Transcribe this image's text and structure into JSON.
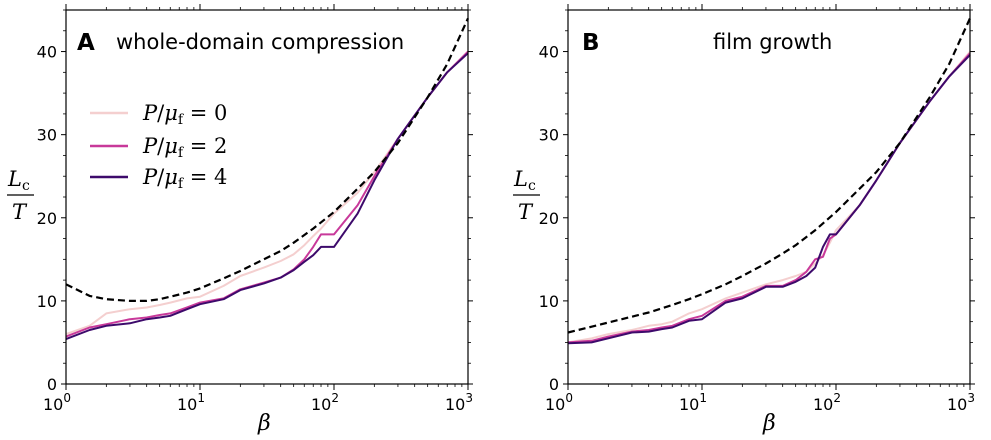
{
  "figure": {
    "legend": [
      {
        "label": "P/μ_f = 0",
        "num": "0",
        "color": "#f4cfcf"
      },
      {
        "label": "P/μ_f = 2",
        "num": "2",
        "color": "#c8399a"
      },
      {
        "label": "P/μ_f = 4",
        "num": "4",
        "color": "#3d0a6b"
      }
    ],
    "dashed_color": "#000000"
  },
  "chart_data": [
    {
      "type": "line",
      "panel_letter": "A",
      "title": "whole-domain compression",
      "xlabel": "β",
      "ylabel": "L_c / T",
      "xscale": "log",
      "xlim": [
        1,
        1000
      ],
      "ylim": [
        0,
        45
      ],
      "xticks": [
        {
          "value": 1,
          "base": "10",
          "exp": "0"
        },
        {
          "value": 10,
          "base": "10",
          "exp": "1"
        },
        {
          "value": 100,
          "base": "10",
          "exp": "2"
        },
        {
          "value": 1000,
          "base": "10",
          "exp": "3"
        }
      ],
      "yticks": [
        0,
        10,
        20,
        30,
        40
      ],
      "grid": false,
      "legend_position": "upper-left",
      "series": [
        {
          "name": "P/μ_f = 0",
          "style": "solid",
          "x": [
            1,
            1.5,
            2,
            3,
            4,
            5,
            6,
            8,
            10,
            15,
            20,
            30,
            40,
            50,
            60,
            70,
            80,
            100,
            150,
            200,
            300,
            500,
            700,
            1000
          ],
          "y": [
            6,
            7,
            8.5,
            9,
            9.2,
            9.5,
            9.8,
            10.3,
            10.5,
            11.8,
            13,
            14,
            14.8,
            15.6,
            16.7,
            17.8,
            18.7,
            20.5,
            23,
            25.5,
            29.5,
            34.5,
            37.5,
            40
          ]
        },
        {
          "name": "P/μ_f = 2",
          "style": "solid",
          "x": [
            1,
            1.5,
            2,
            3,
            4,
            5,
            6,
            8,
            10,
            15,
            20,
            30,
            40,
            50,
            60,
            70,
            80,
            100,
            150,
            200,
            300,
            500,
            700,
            1000
          ],
          "y": [
            5.7,
            6.8,
            7.2,
            7.8,
            8,
            8.3,
            8.5,
            9.2,
            9.8,
            10.3,
            11.4,
            12.2,
            12.8,
            13.8,
            15,
            16.5,
            18,
            18,
            21.5,
            25,
            29.5,
            34.5,
            37.5,
            40
          ]
        },
        {
          "name": "P/μ_f = 4",
          "style": "solid",
          "x": [
            1,
            1.5,
            2,
            3,
            4,
            5,
            6,
            8,
            10,
            15,
            20,
            30,
            40,
            50,
            60,
            70,
            80,
            100,
            150,
            200,
            300,
            500,
            700,
            1000
          ],
          "y": [
            5.4,
            6.5,
            7,
            7.3,
            7.8,
            8,
            8.2,
            9,
            9.6,
            10.2,
            11.3,
            12.1,
            12.8,
            13.7,
            14.7,
            15.5,
            16.5,
            16.5,
            20.5,
            24.5,
            29.5,
            34.5,
            37.5,
            39.8
          ]
        },
        {
          "name": "",
          "style": "dashed",
          "x": [
            1,
            1.5,
            2,
            3,
            4,
            5,
            6,
            8,
            10,
            15,
            20,
            30,
            40,
            50,
            70,
            100,
            150,
            200,
            300,
            500,
            700,
            1000
          ],
          "y": [
            12,
            10.6,
            10.2,
            10,
            10,
            10.2,
            10.5,
            11,
            11.5,
            12.7,
            13.6,
            15,
            16,
            17,
            18.7,
            20.7,
            23.5,
            25.5,
            29,
            34.5,
            38.5,
            44
          ]
        }
      ]
    },
    {
      "type": "line",
      "panel_letter": "B",
      "title": "film growth",
      "xlabel": "β",
      "ylabel": "L_c / T",
      "xscale": "log",
      "xlim": [
        1,
        1000
      ],
      "ylim": [
        0,
        45
      ],
      "xticks": [
        {
          "value": 1,
          "base": "10",
          "exp": "0"
        },
        {
          "value": 10,
          "base": "10",
          "exp": "1"
        },
        {
          "value": 100,
          "base": "10",
          "exp": "2"
        },
        {
          "value": 1000,
          "base": "10",
          "exp": "3"
        }
      ],
      "yticks": [
        0,
        10,
        20,
        30,
        40
      ],
      "grid": false,
      "series": [
        {
          "name": "P/μ_f = 0",
          "style": "solid",
          "x": [
            1,
            1.5,
            2,
            3,
            4,
            5,
            6,
            8,
            10,
            15,
            20,
            30,
            40,
            50,
            60,
            70,
            80,
            90,
            100,
            150,
            200,
            300,
            500,
            700,
            1000
          ],
          "y": [
            5,
            5.5,
            6,
            6.5,
            7,
            7.2,
            7.5,
            8.5,
            9,
            10.3,
            11,
            12,
            12.5,
            13,
            13.5,
            14.5,
            15.5,
            17,
            18.5,
            21.5,
            24.5,
            29,
            34,
            37,
            40
          ]
        },
        {
          "name": "P/μ_f = 2",
          "style": "solid",
          "x": [
            1,
            1.5,
            2,
            3,
            4,
            5,
            6,
            8,
            10,
            15,
            20,
            30,
            40,
            50,
            60,
            70,
            80,
            90,
            100,
            150,
            200,
            300,
            500,
            700,
            1000
          ],
          "y": [
            5,
            5.2,
            5.7,
            6.3,
            6.5,
            6.8,
            7,
            7.8,
            8.2,
            10,
            10.5,
            11.8,
            11.8,
            12.5,
            13.5,
            15,
            15.3,
            17.5,
            18,
            21.5,
            24.5,
            29,
            34,
            37,
            39.8
          ]
        },
        {
          "name": "P/μ_f = 4",
          "style": "solid",
          "x": [
            1,
            1.5,
            2,
            3,
            4,
            5,
            6,
            8,
            10,
            15,
            20,
            30,
            40,
            50,
            60,
            70,
            80,
            90,
            100,
            150,
            200,
            300,
            500,
            700,
            1000
          ],
          "y": [
            4.9,
            5,
            5.5,
            6.2,
            6.3,
            6.6,
            6.8,
            7.6,
            7.8,
            9.8,
            10.3,
            11.7,
            11.7,
            12.3,
            13,
            14,
            16.5,
            18,
            18,
            21.5,
            24.5,
            29,
            34,
            37,
            39.6
          ]
        },
        {
          "name": "",
          "style": "dashed",
          "x": [
            1,
            1.5,
            2,
            3,
            4,
            5,
            6,
            8,
            10,
            15,
            20,
            30,
            40,
            50,
            70,
            100,
            150,
            200,
            300,
            500,
            700,
            1000
          ],
          "y": [
            6.2,
            6.9,
            7.4,
            8.1,
            8.6,
            9.1,
            9.5,
            10.2,
            10.8,
            12,
            13,
            14.5,
            15.7,
            16.7,
            18.5,
            20.7,
            23.5,
            25.5,
            29,
            34.5,
            38.5,
            44
          ]
        }
      ]
    }
  ]
}
